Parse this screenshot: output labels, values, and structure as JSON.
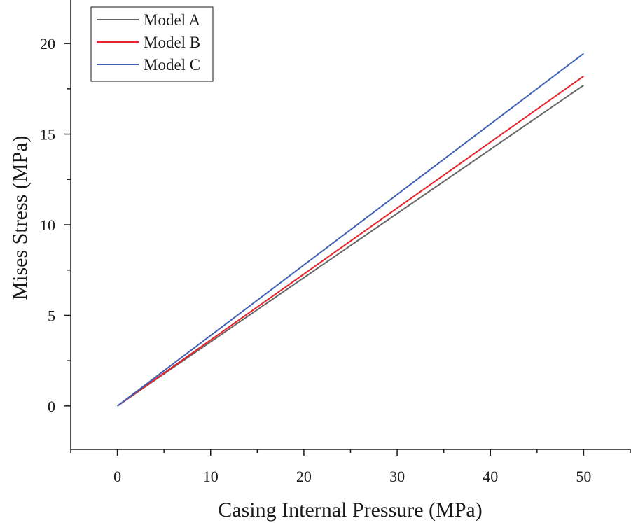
{
  "chart_data": {
    "type": "line",
    "title": "",
    "xlabel": "Casing Internal Pressure (MPa)",
    "ylabel": "Mises Stress (MPa)",
    "xlim": [
      -5,
      55
    ],
    "ylim": [
      -2.4,
      22.4
    ],
    "xticks": [
      0,
      10,
      20,
      30,
      40,
      50
    ],
    "yticks": [
      0,
      5,
      10,
      15,
      20
    ],
    "xtick_labels": [
      "0",
      "10",
      "20",
      "30",
      "40",
      "50"
    ],
    "ytick_labels": [
      "0",
      "5",
      "10",
      "15",
      "20"
    ],
    "grid": false,
    "legend_position": "top-left",
    "series": [
      {
        "name": "Model A",
        "color": "#666666",
        "x": [
          0,
          50
        ],
        "y": [
          0,
          17.7
        ]
      },
      {
        "name": "Model B",
        "color": "#e8232a",
        "x": [
          0,
          50
        ],
        "y": [
          0,
          18.2
        ]
      },
      {
        "name": "Model C",
        "color": "#3f5fb5",
        "x": [
          0,
          50
        ],
        "y": [
          0,
          19.45
        ]
      }
    ]
  }
}
